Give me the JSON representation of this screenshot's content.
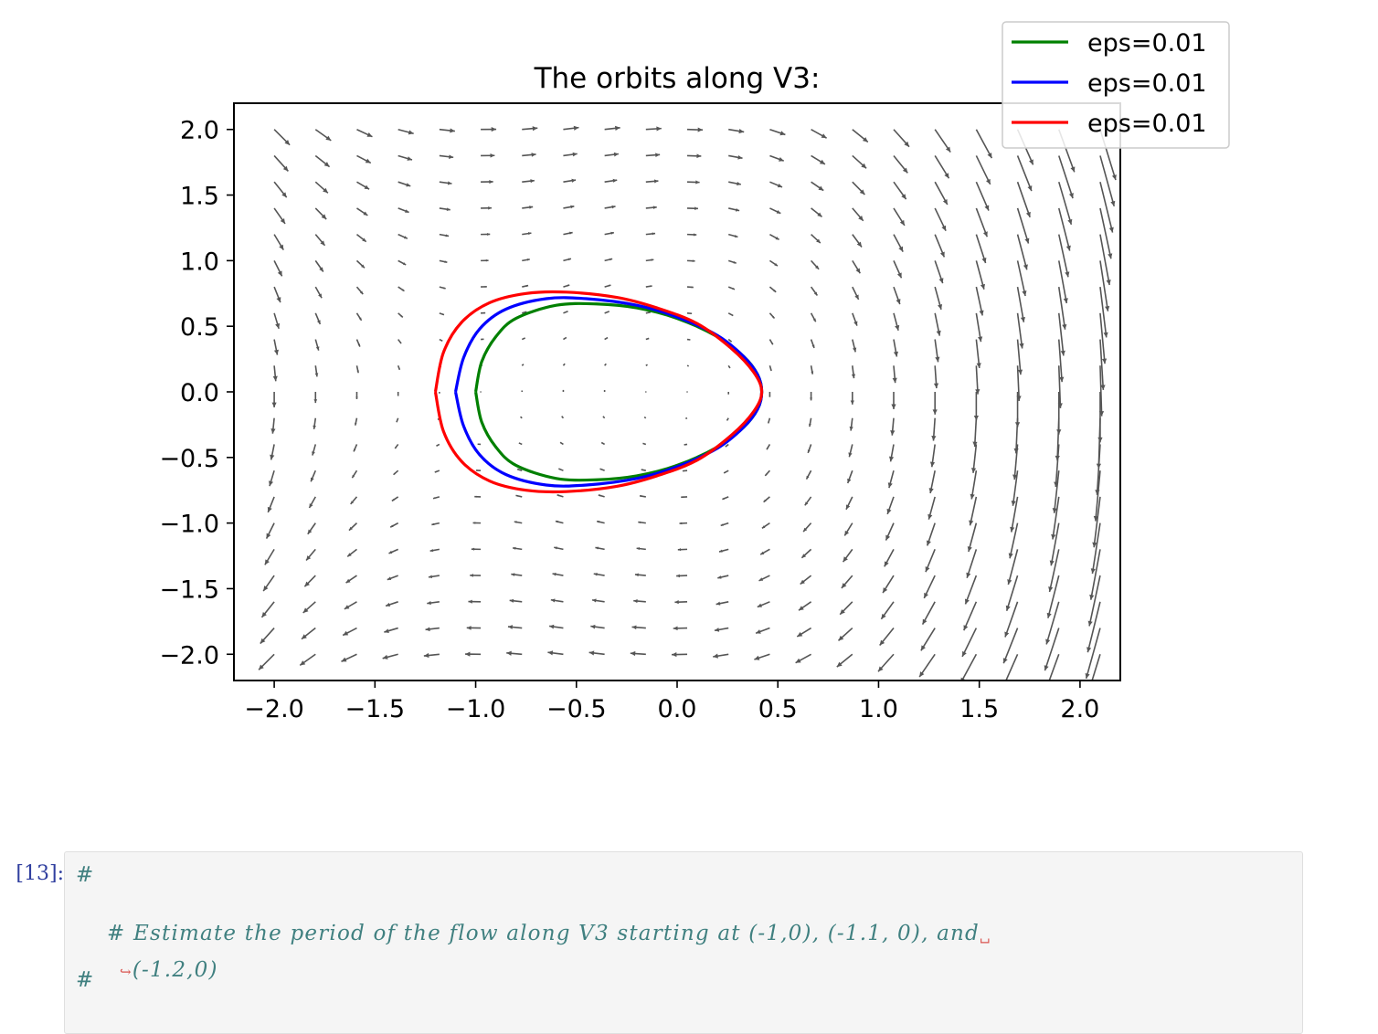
{
  "chart_data": {
    "type": "quiver+line",
    "title": "The orbits along V3:",
    "xlabel": "",
    "ylabel": "",
    "xlim": [
      -2.2,
      2.2
    ],
    "ylim": [
      -2.2,
      2.2
    ],
    "xticks": [
      -2.0,
      -1.5,
      -1.0,
      -0.5,
      0.0,
      0.5,
      1.0,
      1.5,
      2.0
    ],
    "yticks": [
      -2.0,
      -1.5,
      -1.0,
      -0.5,
      0.0,
      0.5,
      1.0,
      1.5,
      2.0
    ],
    "grid": false,
    "legend_position": "top-right",
    "quiver": {
      "x_range": [
        -2.0,
        2.1
      ],
      "y_range": [
        -2.0,
        2.0
      ],
      "color": "#555555"
    },
    "series": [
      {
        "name": "eps=0.01",
        "color": "#008000",
        "start": [
          -1.0,
          0.0
        ],
        "x": [
          -1.0,
          -0.97,
          -0.9,
          -0.8,
          -0.6,
          -0.4,
          -0.2,
          0.0,
          0.2,
          0.33,
          0.4,
          0.42,
          0.4,
          0.33,
          0.2,
          0.0,
          -0.2,
          -0.4,
          -0.6,
          -0.8,
          -0.9,
          -0.97,
          -1.0
        ],
        "y": [
          0.0,
          0.23,
          0.42,
          0.56,
          0.66,
          0.67,
          0.64,
          0.56,
          0.42,
          0.27,
          0.13,
          0.0,
          -0.13,
          -0.27,
          -0.42,
          -0.56,
          -0.64,
          -0.67,
          -0.66,
          -0.56,
          -0.42,
          -0.23,
          0.0
        ]
      },
      {
        "name": "eps=0.01",
        "color": "#0000ff",
        "start": [
          -1.1,
          0.0
        ],
        "x": [
          -1.1,
          -1.06,
          -0.98,
          -0.85,
          -0.65,
          -0.45,
          -0.2,
          0.0,
          0.2,
          0.33,
          0.4,
          0.42,
          0.4,
          0.33,
          0.2,
          0.0,
          -0.2,
          -0.45,
          -0.65,
          -0.85,
          -0.98,
          -1.06,
          -1.1
        ],
        "y": [
          0.0,
          0.26,
          0.48,
          0.63,
          0.71,
          0.71,
          0.66,
          0.57,
          0.43,
          0.27,
          0.13,
          0.0,
          -0.13,
          -0.27,
          -0.43,
          -0.57,
          -0.66,
          -0.71,
          -0.71,
          -0.63,
          -0.48,
          -0.26,
          0.0
        ]
      },
      {
        "name": "eps=0.01",
        "color": "#ff0000",
        "start": [
          -1.2,
          0.0
        ],
        "x": [
          -1.2,
          -1.16,
          -1.07,
          -0.93,
          -0.75,
          -0.55,
          -0.3,
          -0.1,
          0.1,
          0.27,
          0.38,
          0.42,
          0.38,
          0.27,
          0.1,
          -0.1,
          -0.3,
          -0.55,
          -0.75,
          -0.93,
          -1.07,
          -1.16,
          -1.2
        ],
        "y": [
          0.0,
          0.3,
          0.53,
          0.68,
          0.75,
          0.76,
          0.72,
          0.64,
          0.52,
          0.33,
          0.15,
          0.0,
          -0.15,
          -0.33,
          -0.52,
          -0.64,
          -0.72,
          -0.76,
          -0.75,
          -0.68,
          -0.53,
          -0.3,
          0.0
        ]
      }
    ]
  },
  "cell": {
    "prompt": "[13]:",
    "lines": [
      "#",
      "# Estimate the period of the flow along V3 starting at (-1,0), (-1.1, 0), and",
      "(-1.2,0)",
      "#"
    ],
    "wrap_open": "␣",
    "wrap_close": "↪"
  }
}
